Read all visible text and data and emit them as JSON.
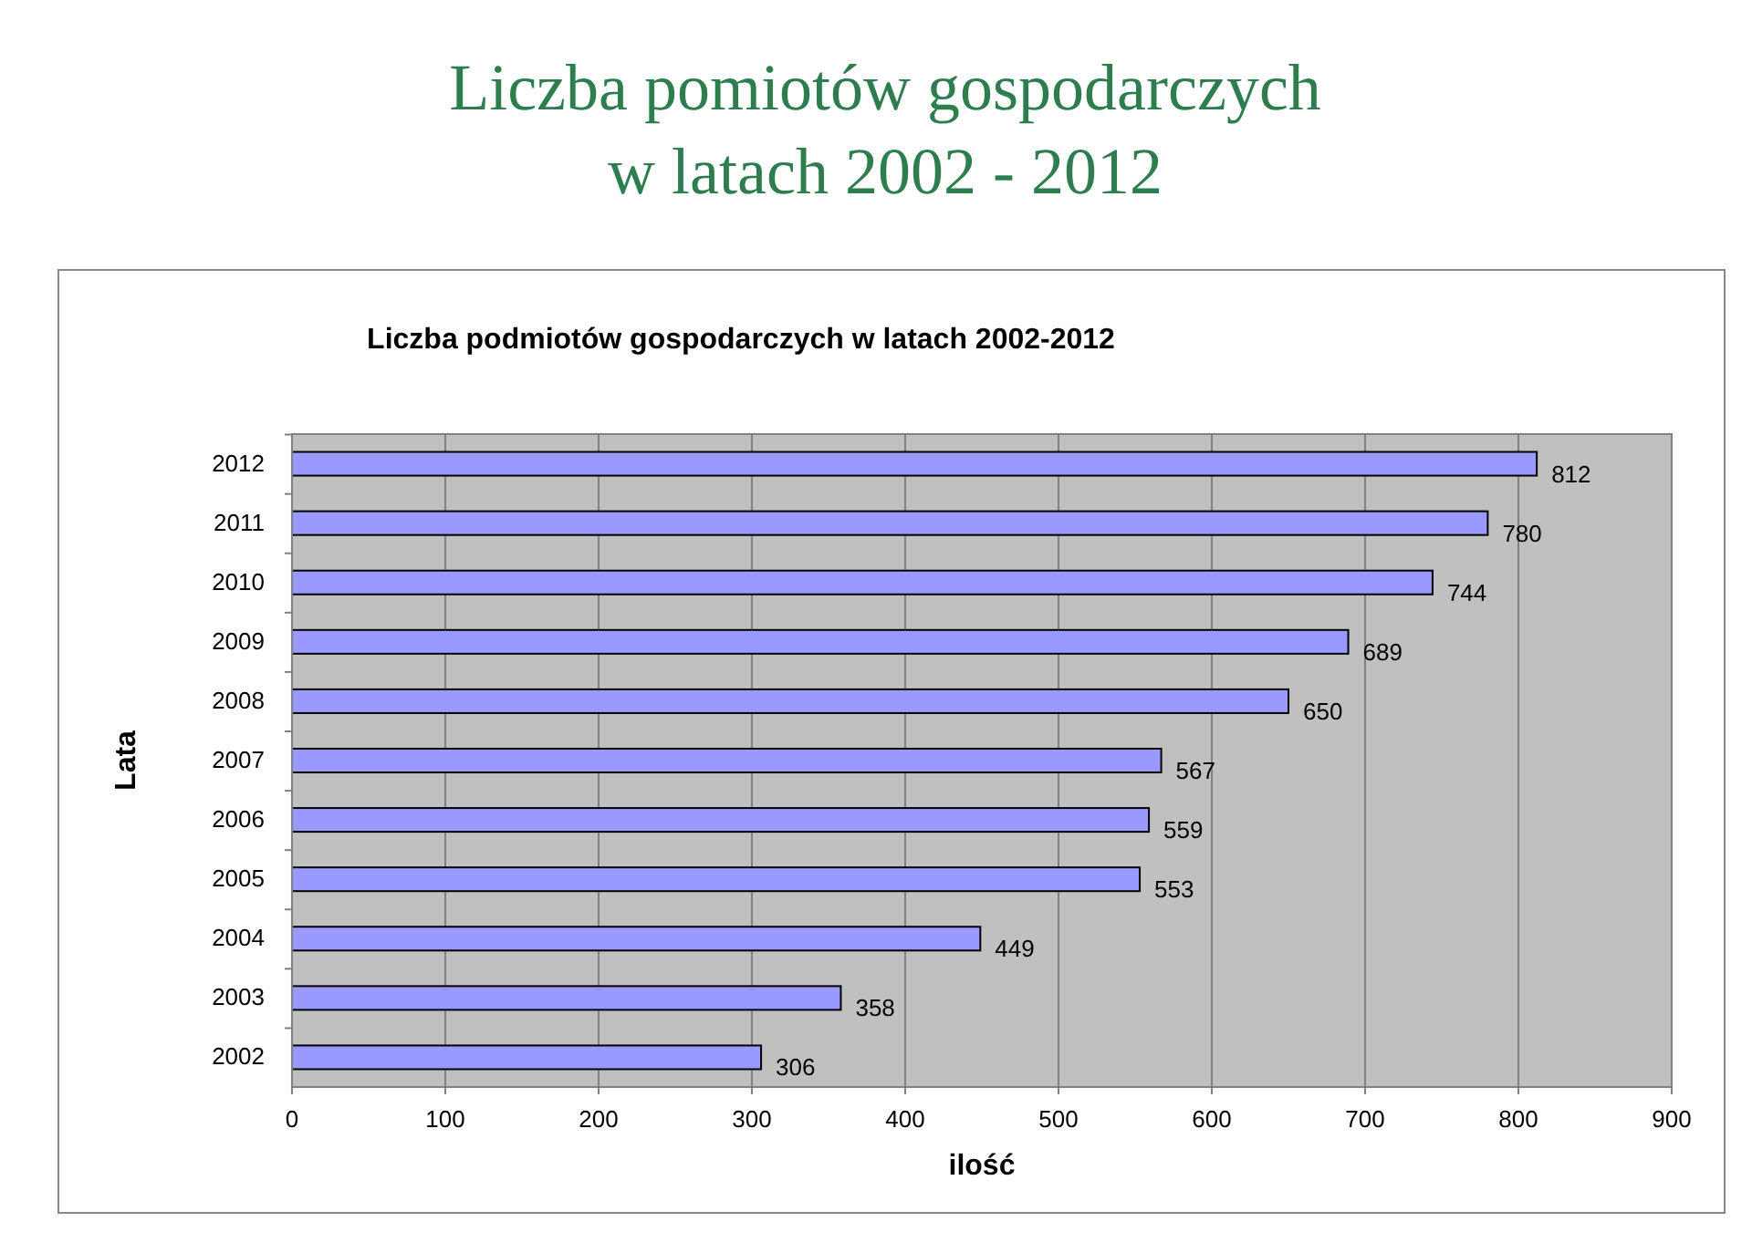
{
  "chart_data": {
    "type": "bar",
    "orientation": "horizontal",
    "title": "Liczba pomiotów gospodarczych w latach 2002 - 2012",
    "subtitle": "Liczba podmiotów gospodarczych w latach 2002-2012",
    "xlabel": "ilość",
    "ylabel": "Lata",
    "categories": [
      "2012",
      "2011",
      "2010",
      "2009",
      "2008",
      "2007",
      "2006",
      "2005",
      "2004",
      "2003",
      "2002"
    ],
    "values": [
      812,
      780,
      744,
      689,
      650,
      567,
      559,
      553,
      449,
      358,
      306
    ],
    "color": "#9999ff",
    "xlim": [
      0,
      900
    ],
    "xticks": [
      0,
      100,
      200,
      300,
      400,
      500,
      600,
      700,
      800,
      900
    ],
    "grid": "x",
    "data_labels": true
  }
}
